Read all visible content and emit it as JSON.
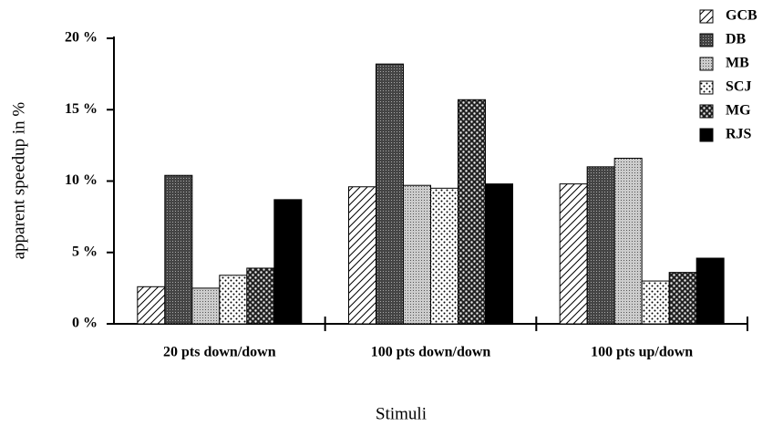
{
  "chart_data": {
    "type": "bar",
    "xlabel": "Stimuli",
    "ylabel": "apparent speedup in %",
    "categories": [
      "20 pts down/down",
      "100 pts down/down",
      "100 pts up/down"
    ],
    "series": [
      {
        "name": "GCB",
        "color": "#ffffff",
        "pattern": "diagonal",
        "values": [
          2.6,
          9.6,
          9.8
        ]
      },
      {
        "name": "DB",
        "color": "#555555",
        "pattern": "dark-dots",
        "values": [
          10.4,
          18.2,
          11.0
        ]
      },
      {
        "name": "MB",
        "color": "#bbbbbb",
        "pattern": "light-dots",
        "values": [
          2.5,
          9.7,
          11.6
        ]
      },
      {
        "name": "SCJ",
        "color": "#ffffff",
        "pattern": "sparse-dots",
        "values": [
          3.4,
          9.5,
          3.0
        ]
      },
      {
        "name": "MG",
        "color": "#333333",
        "pattern": "checker",
        "values": [
          3.9,
          15.7,
          3.6
        ]
      },
      {
        "name": "RJS",
        "color": "#000000",
        "pattern": "solid",
        "values": [
          8.7,
          9.8,
          4.6
        ]
      }
    ],
    "ylim": [
      0,
      20
    ],
    "yticks": [
      {
        "value": 0,
        "label": "0 %"
      },
      {
        "value": 5,
        "label": "5 %"
      },
      {
        "value": 10,
        "label": "10 %"
      },
      {
        "value": 15,
        "label": "15 %"
      },
      {
        "value": 20,
        "label": "20 %"
      }
    ],
    "legend": "top-right"
  }
}
